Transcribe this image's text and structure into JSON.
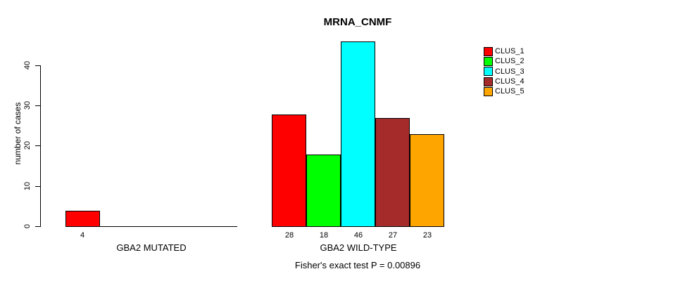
{
  "title": "MRNA_CNMF",
  "caption": "Fisher's exact test P = 0.00896",
  "y_axis": {
    "label": "number of cases",
    "ticks": [
      0,
      10,
      20,
      30,
      40
    ]
  },
  "legend": {
    "position": "top-right",
    "items": [
      {
        "label": "CLUS_1",
        "color": "#FF0000"
      },
      {
        "label": "CLUS_2",
        "color": "#00FF00"
      },
      {
        "label": "CLUS_3",
        "color": "#00FFFF"
      },
      {
        "label": "CLUS_4",
        "color": "#A52A2A"
      },
      {
        "label": "CLUS_5",
        "color": "#FFA500"
      }
    ]
  },
  "chart_data": {
    "type": "bar",
    "title": "MRNA_CNMF",
    "ylabel": "number of cases",
    "ylim": [
      0,
      46
    ],
    "grid": false,
    "legend_position": "top-right",
    "categories": [
      "CLUS_1",
      "CLUS_2",
      "CLUS_3",
      "CLUS_4",
      "CLUS_5"
    ],
    "groups": [
      {
        "label": "GBA2 MUTATED",
        "slots": 5,
        "bars": [
          {
            "cluster": "CLUS_1",
            "value": 4,
            "display": "4",
            "color": "#FF0000"
          }
        ]
      },
      {
        "label": "GBA2 WILD-TYPE",
        "slots": 5,
        "bars": [
          {
            "cluster": "CLUS_1",
            "value": 28,
            "display": "28",
            "color": "#FF0000"
          },
          {
            "cluster": "CLUS_2",
            "value": 18,
            "display": "18",
            "color": "#00FF00"
          },
          {
            "cluster": "CLUS_3",
            "value": 46,
            "display": "46",
            "color": "#00FFFF"
          },
          {
            "cluster": "CLUS_4",
            "value": 27,
            "display": "27",
            "color": "#A52A2A"
          },
          {
            "cluster": "CLUS_5",
            "value": 23,
            "display": "23",
            "color": "#FFA500"
          }
        ]
      }
    ],
    "annotation": "Fisher's exact test P = 0.00896"
  }
}
